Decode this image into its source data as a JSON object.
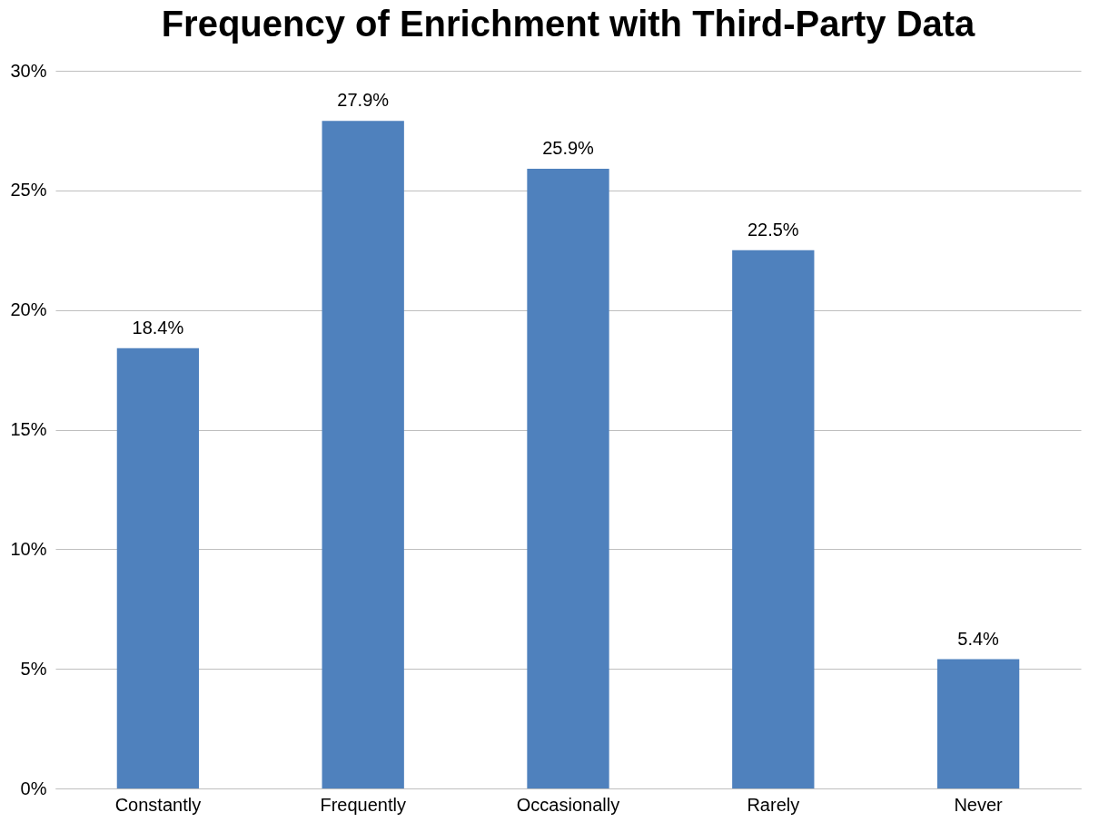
{
  "chart_data": {
    "type": "bar",
    "title": "Frequency of Enrichment with Third-Party Data",
    "categories": [
      "Constantly",
      "Frequently",
      "Occasionally",
      "Rarely",
      "Never"
    ],
    "values": [
      18.4,
      27.9,
      25.9,
      22.5,
      5.4
    ],
    "value_labels": [
      "18.4%",
      "27.9%",
      "25.9%",
      "22.5%",
      "5.4%"
    ],
    "color": "#4f81bd",
    "ylim": [
      0,
      30
    ],
    "yticks": [
      {
        "value": 0,
        "label": "0%"
      },
      {
        "value": 5,
        "label": "5%"
      },
      {
        "value": 10,
        "label": "10%"
      },
      {
        "value": 15,
        "label": "15%"
      },
      {
        "value": 20,
        "label": "20%"
      },
      {
        "value": 25,
        "label": "25%"
      },
      {
        "value": 30,
        "label": "30%"
      }
    ],
    "grid": "y"
  }
}
